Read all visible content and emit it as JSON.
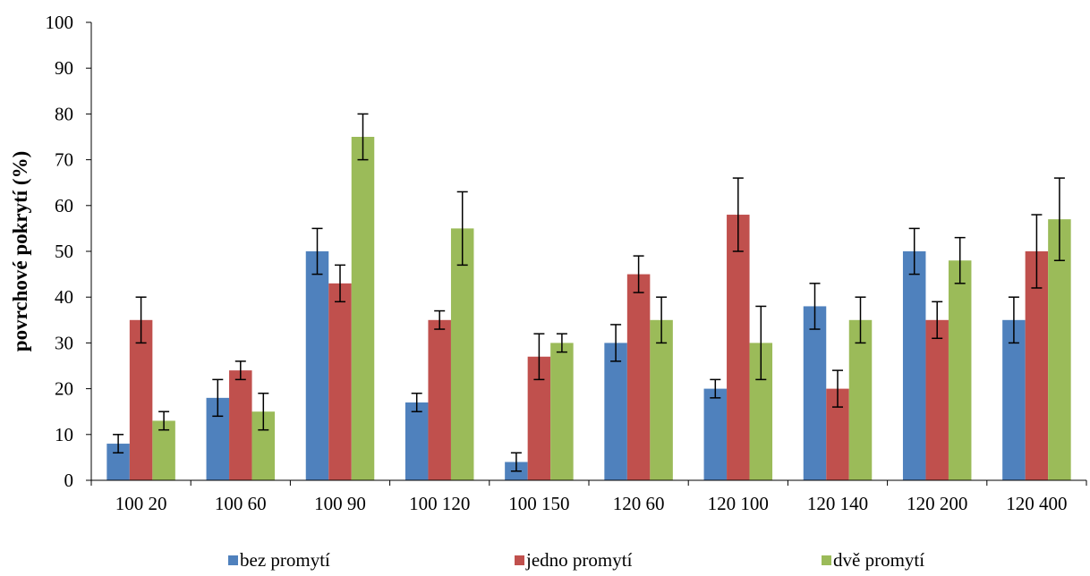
{
  "chart_data": {
    "type": "bar",
    "title": "",
    "xlabel": "",
    "ylabel": "povrchové pokrytí (%)",
    "ylim": [
      0,
      100
    ],
    "yticks": [
      0,
      10,
      20,
      30,
      40,
      50,
      60,
      70,
      80,
      90,
      100
    ],
    "grid": false,
    "legend_position": "bottom",
    "categories": [
      "100 20",
      "100 60",
      "100 90",
      "100 120",
      "100 150",
      "120 60",
      "120 100",
      "120 140",
      "120 200",
      "120 400"
    ],
    "series": [
      {
        "name": "bez promytí",
        "color": "#4f81bd",
        "values": [
          8,
          18,
          50,
          17,
          4,
          30,
          20,
          38,
          50,
          35
        ],
        "errors": [
          2,
          4,
          5,
          2,
          2,
          4,
          2,
          5,
          5,
          5
        ]
      },
      {
        "name": "jedno promytí",
        "color": "#c0504d",
        "values": [
          35,
          24,
          43,
          35,
          27,
          45,
          58,
          20,
          35,
          50
        ],
        "errors": [
          5,
          2,
          4,
          2,
          5,
          4,
          8,
          4,
          4,
          8
        ]
      },
      {
        "name": "dvě promytí",
        "color": "#9bbb59",
        "values": [
          13,
          15,
          75,
          55,
          30,
          35,
          30,
          35,
          48,
          57
        ],
        "errors": [
          2,
          4,
          5,
          8,
          2,
          5,
          8,
          5,
          5,
          9
        ]
      }
    ]
  }
}
